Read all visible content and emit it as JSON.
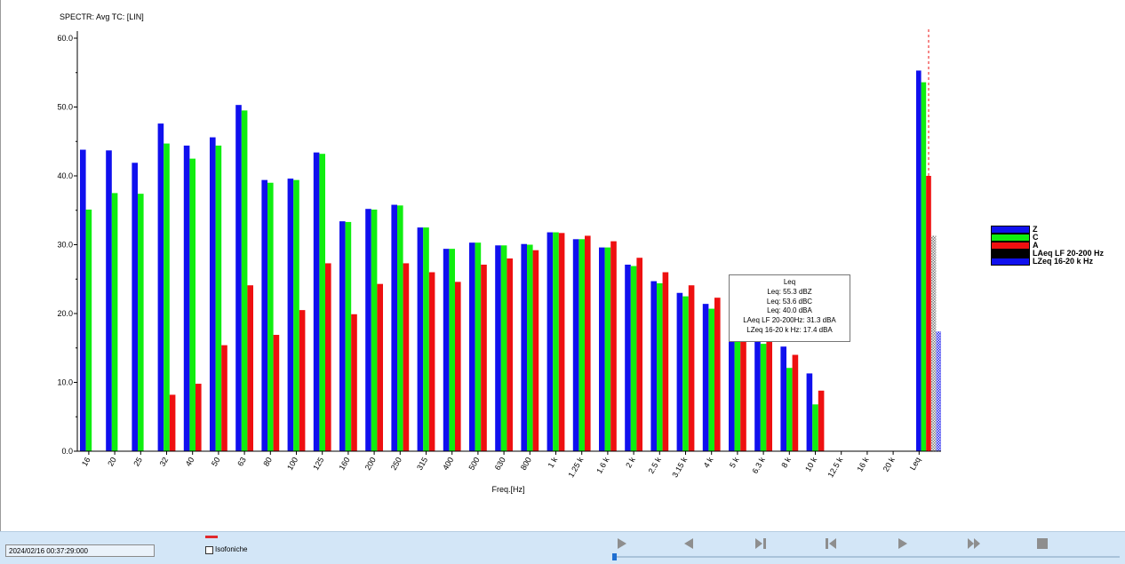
{
  "title": "SPECTR: Avg TC: [LIN]",
  "chart_data": {
    "type": "bar",
    "xlabel": "Freq.[Hz]",
    "ylabel": "",
    "ylim": [
      0,
      60
    ],
    "yticks": [
      "0.0",
      "10.0",
      "20.0",
      "30.0",
      "40.0",
      "50.0",
      "60.0"
    ],
    "categories": [
      "16",
      "20",
      "25",
      "32",
      "40",
      "50",
      "63",
      "80",
      "100",
      "125",
      "160",
      "200",
      "250",
      "315",
      "400",
      "500",
      "630",
      "800",
      "1 k",
      "1.25 k",
      "1.6 k",
      "2 k",
      "2.5 k",
      "3.15 k",
      "4 k",
      "5 k",
      "6.3 k",
      "8 k",
      "10 k",
      "12.5 k",
      "16 k",
      "20 k",
      "Leq"
    ],
    "series": [
      {
        "name": "Z",
        "color": "#1010ee",
        "values": [
          43.8,
          43.7,
          41.9,
          47.6,
          44.4,
          45.6,
          50.3,
          39.4,
          39.6,
          43.4,
          33.4,
          35.2,
          35.8,
          32.5,
          29.4,
          30.3,
          29.9,
          30.1,
          31.8,
          30.8,
          29.6,
          27.1,
          24.7,
          23.0,
          21.4,
          17.2,
          16.8,
          15.2,
          11.3,
          0,
          0,
          0,
          55.3
        ]
      },
      {
        "name": "C",
        "color": "#10ee10",
        "values": [
          35.1,
          37.5,
          37.4,
          44.7,
          42.5,
          44.4,
          49.5,
          39.0,
          39.4,
          43.2,
          33.3,
          35.1,
          35.7,
          32.5,
          29.4,
          30.3,
          29.9,
          30.0,
          31.8,
          30.8,
          29.6,
          26.9,
          24.4,
          22.5,
          20.7,
          16.3,
          15.6,
          12.1,
          6.8,
          0,
          0,
          0,
          53.6
        ]
      },
      {
        "name": "A",
        "color": "#ee1010",
        "values": [
          0,
          0,
          0,
          8.2,
          9.8,
          15.4,
          24.1,
          16.9,
          20.5,
          27.3,
          19.9,
          24.3,
          27.3,
          26.0,
          24.6,
          27.1,
          28.0,
          29.2,
          31.7,
          31.3,
          30.5,
          28.1,
          26.0,
          24.1,
          22.3,
          18.3,
          16.8,
          14.0,
          8.8,
          0,
          0,
          0,
          40.0
        ]
      },
      {
        "name": "LAeq LF 20-200 Hz",
        "color": "#000000",
        "values": [
          null,
          null,
          null,
          null,
          null,
          null,
          null,
          null,
          null,
          null,
          null,
          null,
          null,
          null,
          null,
          null,
          null,
          null,
          null,
          null,
          null,
          null,
          null,
          null,
          null,
          null,
          null,
          null,
          null,
          null,
          null,
          null,
          31.3
        ]
      },
      {
        "name": "LZeq 16-20 k Hz",
        "color": "#1010ee",
        "values": [
          null,
          null,
          null,
          null,
          null,
          null,
          null,
          null,
          null,
          null,
          null,
          null,
          null,
          null,
          null,
          null,
          null,
          null,
          null,
          null,
          null,
          null,
          null,
          null,
          null,
          null,
          null,
          null,
          null,
          null,
          null,
          null,
          17.4
        ]
      }
    ],
    "legend_placement": "right"
  },
  "tooltip": {
    "lines": [
      "Leq",
      "Leq: 55.3 dBZ",
      "Leq: 53.6 dBC",
      "Leq: 40.0 dBA",
      "LAeq LF 20-200Hz: 31.3 dBA",
      "LZeq 16-20 k Hz: 17.4 dBA"
    ]
  },
  "legend": [
    {
      "label": "Z",
      "color": "#1010ee"
    },
    {
      "label": "C",
      "color": "#10ee10"
    },
    {
      "label": "A",
      "color": "#ee1010"
    },
    {
      "label": "LAeq LF 20-200 Hz",
      "color": "#000000"
    },
    {
      "label": "LZeq 16-20 k Hz",
      "color": "#1010ee"
    }
  ],
  "statusbar": {
    "datetime": "2024/02/16 00:37:29:000",
    "isofoniche_label": "Isofoniche",
    "isofoniche_checked": false,
    "controls": [
      "play-start-icon",
      "step-back-icon",
      "skip-end-icon",
      "skip-start-icon",
      "play-icon",
      "fast-forward-icon",
      "stop-icon"
    ],
    "progress": 0
  }
}
